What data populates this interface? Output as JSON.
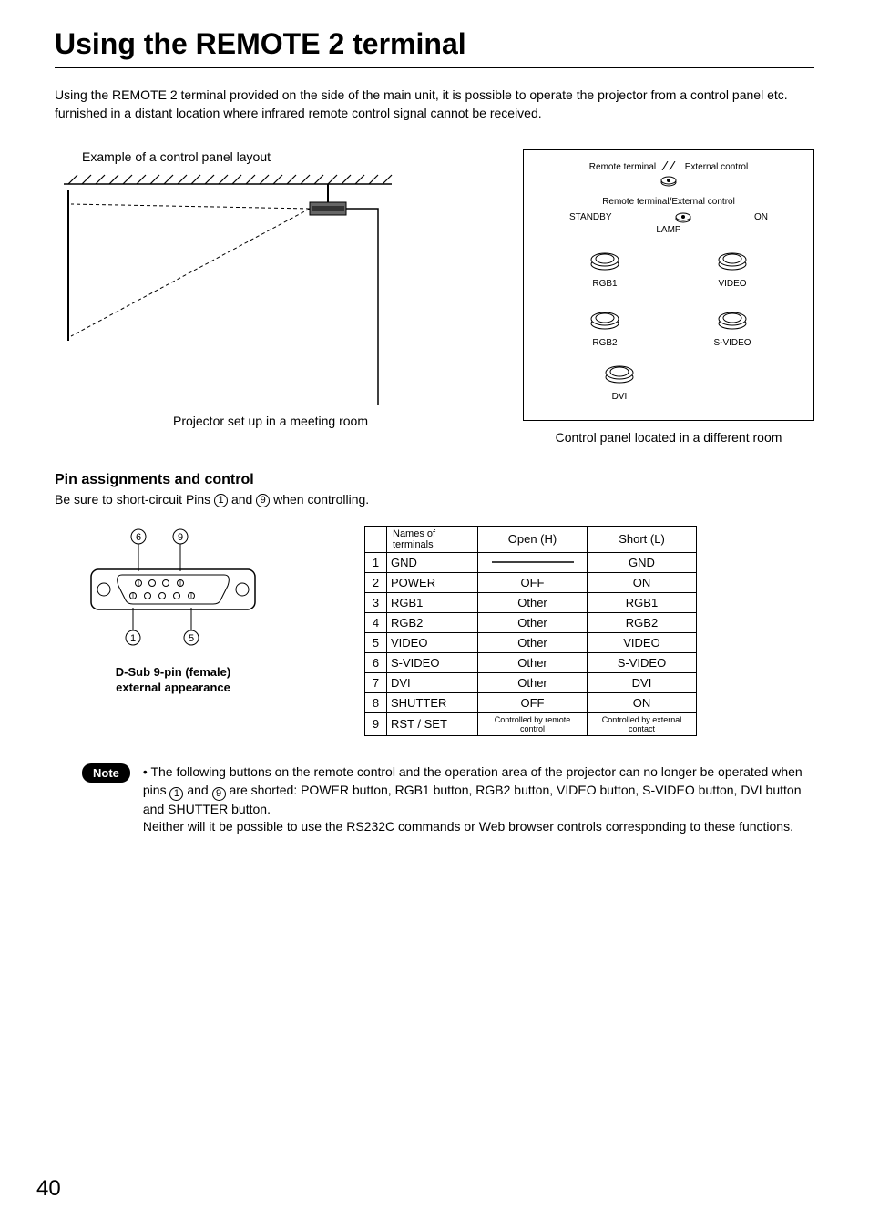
{
  "page": {
    "title": "Using the REMOTE 2 terminal",
    "intro": "Using the REMOTE 2 terminal provided on the side of the main unit, it is possible to operate the projector from a control panel etc. furnished in a distant location where infrared remote control signal cannot be received.",
    "page_number": "40"
  },
  "figures": {
    "example_caption": "Example of a control panel layout",
    "projector_caption": "Projector set up in a meeting room",
    "control_panel_caption": "Control panel located in a different room"
  },
  "control_panel": {
    "top_left": "Remote terminal",
    "top_right": "External control",
    "section_label": "Remote terminal/External control",
    "switch_left": "STANDBY",
    "switch_right": "ON",
    "lamp_label": "LAMP",
    "buttons": [
      "RGB1",
      "VIDEO",
      "RGB2",
      "S-VIDEO",
      "DVI"
    ]
  },
  "pin_section": {
    "heading": "Pin assignments and control",
    "sub_pre": "Be sure to short-circuit Pins ",
    "sub_mid": " and ",
    "sub_post": " when controlling.",
    "pin_a": "1",
    "pin_b": "9",
    "connector_caption_l1": "D-Sub 9-pin (female)",
    "connector_caption_l2": "external appearance",
    "connector_labels": {
      "tl": "6",
      "tr": "9",
      "bl": "1",
      "br": "5"
    }
  },
  "pin_table": {
    "headers": {
      "name": "Names of terminals",
      "open": "Open (H)",
      "short": "Short (L)"
    },
    "rows": [
      {
        "num": "1",
        "name": "GND",
        "open": "",
        "short": "GND",
        "open_strike": true
      },
      {
        "num": "2",
        "name": "POWER",
        "open": "OFF",
        "short": "ON"
      },
      {
        "num": "3",
        "name": "RGB1",
        "open": "Other",
        "short": "RGB1"
      },
      {
        "num": "4",
        "name": "RGB2",
        "open": "Other",
        "short": "RGB2"
      },
      {
        "num": "5",
        "name": "VIDEO",
        "open": "Other",
        "short": "VIDEO"
      },
      {
        "num": "6",
        "name": "S-VIDEO",
        "open": "Other",
        "short": "S-VIDEO"
      },
      {
        "num": "7",
        "name": "DVI",
        "open": "Other",
        "short": "DVI"
      },
      {
        "num": "8",
        "name": "SHUTTER",
        "open": "OFF",
        "short": "ON"
      },
      {
        "num": "9",
        "name": "RST / SET",
        "open": "Controlled by remote control",
        "short": "Controlled by external contact",
        "small": true
      }
    ]
  },
  "note": {
    "badge": "Note",
    "bullet": "•",
    "text_1": "The following buttons on the remote control and the operation area of the projector can no longer be operated when pins ",
    "text_2": " and ",
    "text_3": " are shorted: POWER button, RGB1 button, RGB2 button, VIDEO button, S-VIDEO button, DVI button and SHUTTER button.",
    "text_4": "Neither will it be possible to use the RS232C commands or Web browser controls corresponding to these functions.",
    "pin_a": "1",
    "pin_b": "9"
  },
  "style": {
    "colors": {
      "text": "#000000",
      "bg": "#ffffff",
      "note_bg": "#000000",
      "note_fg": "#ffffff"
    }
  }
}
